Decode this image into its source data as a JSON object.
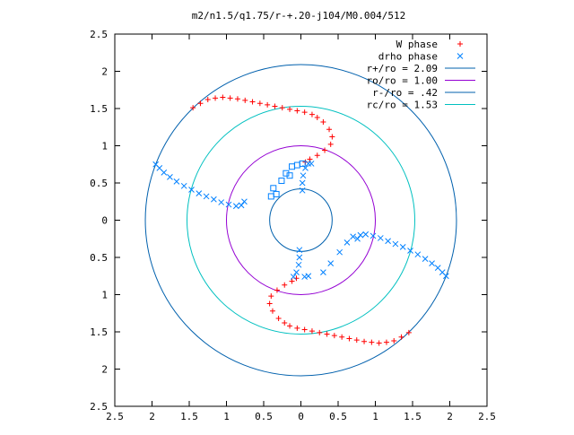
{
  "chart_data": {
    "type": "scatter",
    "title": "m2/n1.5/q1.75/r-+.20-j104/M0.004/512",
    "xlim": [
      -2.5,
      2.5
    ],
    "ylim": [
      -2.5,
      2.5
    ],
    "xticks": [
      -2.5,
      -2,
      -1.5,
      -1,
      -0.5,
      0,
      0.5,
      1,
      1.5,
      2,
      2.5
    ],
    "yticks": [
      -2.5,
      -2,
      -1.5,
      -1,
      -0.5,
      0,
      0.5,
      1,
      1.5,
      2,
      2.5
    ],
    "xtick_labels": [
      "2.5",
      "2",
      "1.5",
      "1",
      "0.5",
      "0",
      "0.5",
      "1",
      "1.5",
      "2",
      "2.5"
    ],
    "ytick_labels": [
      "2.5",
      "2",
      "1.5",
      "1",
      "0.5",
      "0",
      "0.5",
      "1",
      "1.5",
      "2",
      "2.5"
    ],
    "grid": false,
    "legend_position": "top-right",
    "series": [
      {
        "name": "W phase",
        "kind": "points",
        "marker": "plus",
        "color": "#ff0000",
        "points": [
          [
            -1.45,
            1.51
          ],
          [
            -1.35,
            1.57
          ],
          [
            -1.25,
            1.62
          ],
          [
            -1.15,
            1.64
          ],
          [
            -1.05,
            1.65
          ],
          [
            -0.95,
            1.64
          ],
          [
            -0.85,
            1.63
          ],
          [
            -0.75,
            1.61
          ],
          [
            -0.65,
            1.59
          ],
          [
            -0.55,
            1.57
          ],
          [
            -0.45,
            1.55
          ],
          [
            -0.35,
            1.53
          ],
          [
            -0.25,
            1.51
          ],
          [
            -0.15,
            1.49
          ],
          [
            -0.05,
            1.47
          ],
          [
            0.05,
            1.45
          ],
          [
            0.15,
            1.42
          ],
          [
            0.22,
            1.38
          ],
          [
            0.3,
            1.32
          ],
          [
            0.38,
            1.22
          ],
          [
            0.42,
            1.12
          ],
          [
            0.4,
            1.02
          ],
          [
            0.32,
            0.94
          ],
          [
            0.22,
            0.87
          ],
          [
            0.12,
            0.82
          ],
          [
            0.06,
            0.78
          ],
          [
            1.45,
            -1.51
          ],
          [
            1.35,
            -1.57
          ],
          [
            1.25,
            -1.62
          ],
          [
            1.15,
            -1.64
          ],
          [
            1.05,
            -1.65
          ],
          [
            0.95,
            -1.64
          ],
          [
            0.85,
            -1.63
          ],
          [
            0.75,
            -1.61
          ],
          [
            0.65,
            -1.59
          ],
          [
            0.55,
            -1.57
          ],
          [
            0.45,
            -1.55
          ],
          [
            0.35,
            -1.53
          ],
          [
            0.25,
            -1.51
          ],
          [
            0.15,
            -1.49
          ],
          [
            0.05,
            -1.47
          ],
          [
            -0.05,
            -1.45
          ],
          [
            -0.15,
            -1.42
          ],
          [
            -0.22,
            -1.38
          ],
          [
            -0.3,
            -1.32
          ],
          [
            -0.38,
            -1.22
          ],
          [
            -0.42,
            -1.12
          ],
          [
            -0.4,
            -1.02
          ],
          [
            -0.32,
            -0.94
          ],
          [
            -0.22,
            -0.87
          ],
          [
            -0.12,
            -0.82
          ],
          [
            -0.06,
            -0.78
          ]
        ]
      },
      {
        "name": "drho phase",
        "kind": "points",
        "marker": "cross",
        "color": "#0080ff",
        "points": [
          [
            -1.95,
            0.75
          ],
          [
            -1.9,
            0.7
          ],
          [
            -1.84,
            0.64
          ],
          [
            -1.76,
            0.58
          ],
          [
            -1.67,
            0.52
          ],
          [
            -1.57,
            0.46
          ],
          [
            -1.47,
            0.41
          ],
          [
            -1.37,
            0.36
          ],
          [
            -1.27,
            0.32
          ],
          [
            -1.17,
            0.28
          ],
          [
            -1.07,
            0.24
          ],
          [
            -0.97,
            0.21
          ],
          [
            -0.87,
            0.19
          ],
          [
            -0.8,
            0.2
          ],
          [
            -0.76,
            0.25
          ],
          [
            1.95,
            -0.75
          ],
          [
            1.9,
            -0.7
          ],
          [
            1.84,
            -0.64
          ],
          [
            1.76,
            -0.58
          ],
          [
            1.67,
            -0.52
          ],
          [
            1.57,
            -0.46
          ],
          [
            1.47,
            -0.41
          ],
          [
            1.37,
            -0.36
          ],
          [
            1.27,
            -0.32
          ],
          [
            1.17,
            -0.28
          ],
          [
            1.07,
            -0.24
          ],
          [
            0.97,
            -0.21
          ],
          [
            0.87,
            -0.19
          ],
          [
            0.8,
            -0.2
          ],
          [
            0.76,
            -0.25
          ],
          [
            0.02,
            0.4
          ],
          [
            0.02,
            0.5
          ],
          [
            0.03,
            0.6
          ],
          [
            0.06,
            0.7
          ],
          [
            0.1,
            0.76
          ],
          [
            0.14,
            0.76
          ],
          [
            -0.02,
            -0.4
          ],
          [
            -0.02,
            -0.5
          ],
          [
            -0.03,
            -0.6
          ],
          [
            -0.06,
            -0.7
          ],
          [
            -0.1,
            -0.76
          ],
          [
            0.05,
            -0.76
          ],
          [
            0.1,
            -0.75
          ],
          [
            0.3,
            -0.7
          ],
          [
            0.4,
            -0.58
          ],
          [
            0.52,
            -0.43
          ],
          [
            0.62,
            -0.3
          ],
          [
            0.7,
            -0.22
          ]
        ]
      },
      {
        "name": "",
        "kind": "points",
        "marker": "square",
        "color": "#0080ff",
        "points": [
          [
            -0.37,
            0.43
          ],
          [
            -0.33,
            0.35
          ],
          [
            -0.4,
            0.32
          ],
          [
            -0.26,
            0.53
          ],
          [
            -0.2,
            0.63
          ],
          [
            -0.15,
            0.6
          ],
          [
            -0.12,
            0.72
          ],
          [
            -0.05,
            0.74
          ],
          [
            0.02,
            0.76
          ]
        ]
      },
      {
        "name": "r+/ro = 2.09",
        "kind": "circle",
        "radius": 2.09,
        "color": "#0060ad"
      },
      {
        "name": "ro/ro = 1.00",
        "kind": "circle",
        "radius": 1.0,
        "color": "#9400d3"
      },
      {
        "name": "r-/ro = .42",
        "kind": "circle",
        "radius": 0.42,
        "color": "#0060ad"
      },
      {
        "name": "rc/ro = 1.53",
        "kind": "circle",
        "radius": 1.53,
        "color": "#00c0c0"
      }
    ]
  }
}
